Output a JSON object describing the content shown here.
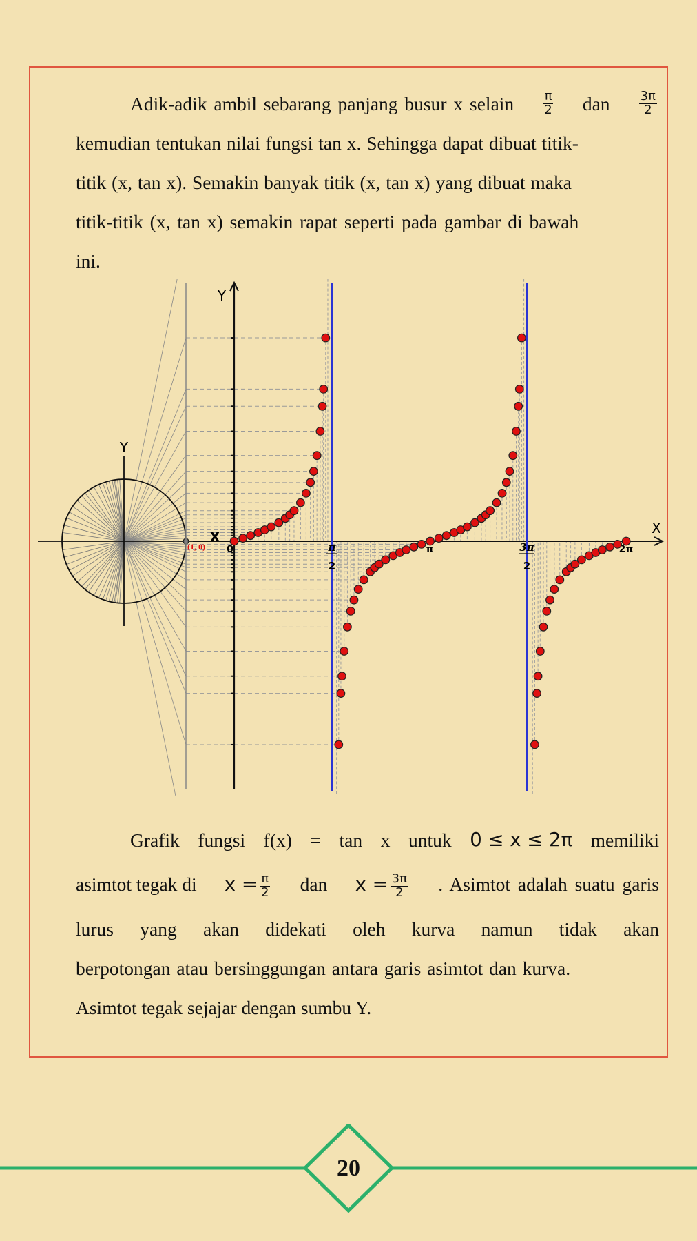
{
  "paragraph1": {
    "line1_prefix": "Adik-adik ambil sebarang panjang busur x selain",
    "frac1_num": "π",
    "frac1_den": "2",
    "line1_mid": "dan",
    "frac2_num": "3π",
    "frac2_den": "2",
    "line2": "kemudian tentukan nilai fungsi tan x. Sehingga dapat dibuat titik-",
    "line3": "titik (x, tan x). Semakin banyak titik (x, tan x) yang dibuat maka",
    "line4": "titik-titik (x, tan x) semakin rapat seperti pada gambar di bawah",
    "line5": "ini."
  },
  "figure": {
    "circle_y_label": "Y",
    "circle_x_label": "X",
    "unit_point_label": "(1, 0)",
    "graph_y_label": "Y",
    "graph_x_label": "X",
    "origin_label": "0",
    "tick_pi_half_num": "π",
    "tick_pi_half_den": "2",
    "tick_pi": "π",
    "tick_3pi_half_num": "3π",
    "tick_3pi_half_den": "2",
    "tick_2pi": "2π",
    "point_color": "#e01010",
    "asymptote_color": "#2a34d4"
  },
  "chart_data": {
    "type": "scatter",
    "title": "",
    "xlabel": "X",
    "ylabel": "Y",
    "x_ticks": [
      "0",
      "π/2",
      "π",
      "3π/2",
      "2π"
    ],
    "function": "tan x",
    "domain": "0 ≤ x ≤ 2π",
    "asymptotes": [
      "π/2",
      "3π/2"
    ],
    "grid": false,
    "x_degrees": [
      0,
      8,
      15,
      22,
      28,
      34,
      41,
      47,
      51,
      55,
      61,
      66,
      70,
      73,
      76,
      79,
      81,
      82,
      84,
      86,
      180,
      188,
      195,
      202,
      208,
      214,
      221,
      227,
      231,
      235,
      241,
      246,
      250,
      253,
      256,
      259,
      261,
      262,
      264,
      266,
      94,
      96,
      98,
      99,
      101,
      104,
      107,
      110,
      114,
      119,
      125,
      129,
      133,
      139,
      146,
      152,
      158,
      165,
      172,
      274,
      276,
      278,
      279,
      281,
      284,
      287,
      290,
      294,
      299,
      305,
      309,
      313,
      319,
      326,
      332,
      338,
      345,
      352,
      360
    ]
  },
  "paragraph2": {
    "line1_words": [
      "Grafik",
      "fungsi",
      "f(x)",
      "=",
      "tan",
      "x",
      "untuk",
      "0 ≤ x ≤ 2π",
      "memiliki"
    ],
    "line2_a": "asimtot tegak di",
    "line2_x1": "x =",
    "frac3_num": "π",
    "frac3_den": "2",
    "line2_dan": "dan",
    "line2_x2": "x =",
    "frac4_num": "3π",
    "frac4_den": "2",
    "line2_b": ". Asimtot adalah suatu garis",
    "line3": "lurus yang akan didekati oleh kurva namun tidak akan",
    "line4": "berpotongan atau bersinggungan antara garis asimtot dan kurva.",
    "line5": "Asimtot tegak sejajar dengan sumbu Y."
  },
  "footer": {
    "page_number": "20",
    "line_color": "#2bb06b"
  }
}
